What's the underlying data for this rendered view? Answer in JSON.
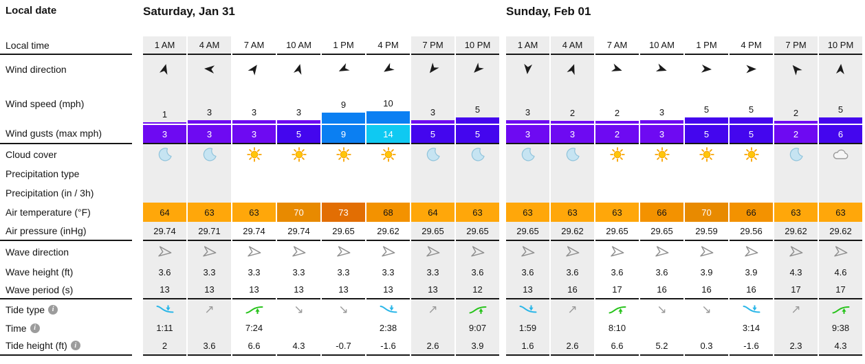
{
  "labels": {
    "local_date": "Local date",
    "rows": [
      {
        "text": "Local time"
      },
      {
        "text": "Wind direction"
      },
      {
        "text": "Wind speed (mph)"
      },
      {
        "text": "Wind gusts (max mph)"
      },
      {
        "text": "Cloud cover"
      },
      {
        "text": "Precipitation type"
      },
      {
        "text": "Precipitation (in / 3h)"
      },
      {
        "text": "Air temperature (°F)"
      },
      {
        "text": "Air pressure (inHg)"
      },
      {
        "text": "Wave direction"
      },
      {
        "text": "Wave height (ft)"
      },
      {
        "text": "Wave period (s)"
      },
      {
        "text": "Tide type",
        "info": true
      },
      {
        "text": "Time",
        "info": true
      },
      {
        "text": "Tide height (ft)",
        "info": true
      }
    ]
  },
  "scales": {
    "wind": [
      {
        "max": 3,
        "color": "#6E0AF2"
      },
      {
        "max": 6,
        "color": "#4406EE"
      },
      {
        "max": 10,
        "color": "#0B7FF2"
      },
      {
        "max": 99,
        "color": "#0FC9F2"
      }
    ],
    "temp": [
      {
        "max": 64,
        "bg": "#FFA70A",
        "fg": "#141414"
      },
      {
        "max": 68,
        "bg": "#F39200",
        "fg": "#141414"
      },
      {
        "max": 71,
        "bg": "#E88A00",
        "fg": "#FFFFFF"
      },
      {
        "max": 150,
        "bg": "#E26E03",
        "fg": "#FFFFFF"
      }
    ]
  },
  "colors": {
    "night_bg": "#EDEDED",
    "day_bg": "#FFFFFF",
    "grid_line": "#151515",
    "wind_arrow": "#1B1B1B",
    "wave_arrow": "#8F8F8F",
    "sun_core": "#FFC60B",
    "sun_rays": "#F7A300",
    "moon_fill": "#C6E4F2",
    "moon_stroke": "#8FC3DB",
    "cloud_fill": "#F6F6F6",
    "cloud_stroke": "#9B9B9B",
    "tide_low": "#29B6E8",
    "tide_high": "#27C31B",
    "tide_arrow": "#9A9A9A"
  },
  "glyphs": {
    "rising": "↗",
    "falling": "↘",
    "info": "i"
  },
  "days": [
    {
      "title": "Saturday, Jan 31",
      "columns": [
        {
          "time": "1 AM",
          "night": true,
          "wind_dir_deg": 15,
          "wind_speed": 1,
          "wind_gust": 3,
          "cloud": "moon",
          "temp": 64,
          "pressure": "29.74",
          "wave_height": "3.6",
          "wave_period": "13",
          "tide": {
            "type": "low",
            "time": "1:11",
            "height": "2"
          }
        },
        {
          "time": "4 AM",
          "night": true,
          "wind_dir_deg": 275,
          "wind_speed": 3,
          "wind_gust": 3,
          "cloud": "moon",
          "temp": 63,
          "pressure": "29.71",
          "wave_height": "3.3",
          "wave_period": "13",
          "tide": {
            "type": "rising",
            "time": "",
            "height": "3.6"
          }
        },
        {
          "time": "7 AM",
          "night": false,
          "wind_dir_deg": 35,
          "wind_speed": 3,
          "wind_gust": 3,
          "cloud": "sun",
          "temp": 63,
          "pressure": "29.74",
          "wave_height": "3.3",
          "wave_period": "13",
          "tide": {
            "type": "high",
            "time": "7:24",
            "height": "6.6"
          }
        },
        {
          "time": "10 AM",
          "night": false,
          "wind_dir_deg": 15,
          "wind_speed": 3,
          "wind_gust": 5,
          "cloud": "sun",
          "temp": 70,
          "pressure": "29.74",
          "wave_height": "3.3",
          "wave_period": "13",
          "tide": {
            "type": "falling",
            "time": "",
            "height": "4.3"
          }
        },
        {
          "time": "1 PM",
          "night": false,
          "wind_dir_deg": 243,
          "wind_speed": 9,
          "wind_gust": 9,
          "cloud": "sun",
          "temp": 73,
          "pressure": "29.65",
          "wave_height": "3.3",
          "wave_period": "13",
          "tide": {
            "type": "falling",
            "time": "",
            "height": "-0.7"
          }
        },
        {
          "time": "4 PM",
          "night": false,
          "wind_dir_deg": 237,
          "wind_speed": 10,
          "wind_gust": 14,
          "cloud": "sun",
          "temp": 68,
          "pressure": "29.62",
          "wave_height": "3.3",
          "wave_period": "13",
          "tide": {
            "type": "low",
            "time": "2:38",
            "height": "-1.6"
          }
        },
        {
          "time": "7 PM",
          "night": true,
          "wind_dir_deg": 218,
          "wind_speed": 3,
          "wind_gust": 5,
          "cloud": "moon",
          "temp": 64,
          "pressure": "29.65",
          "wave_height": "3.3",
          "wave_period": "13",
          "tide": {
            "type": "rising",
            "time": "",
            "height": "2.6"
          }
        },
        {
          "time": "10 PM",
          "night": true,
          "wind_dir_deg": 225,
          "wind_speed": 5,
          "wind_gust": 5,
          "cloud": "moon",
          "temp": 63,
          "pressure": "29.65",
          "wave_height": "3.6",
          "wave_period": "12",
          "tide": {
            "type": "high",
            "time": "9:07",
            "height": "3.9"
          }
        }
      ]
    },
    {
      "title": "Sunday, Feb 01",
      "columns": [
        {
          "time": "1 AM",
          "night": true,
          "wind_dir_deg": 185,
          "wind_speed": 3,
          "wind_gust": 3,
          "cloud": "moon",
          "temp": 63,
          "pressure": "29.65",
          "wave_height": "3.6",
          "wave_period": "13",
          "tide": {
            "type": "low",
            "time": "1:59",
            "height": "1.6"
          }
        },
        {
          "time": "4 AM",
          "night": true,
          "wind_dir_deg": 20,
          "wind_speed": 2,
          "wind_gust": 3,
          "cloud": "moon",
          "temp": 63,
          "pressure": "29.62",
          "wave_height": "3.6",
          "wave_period": "16",
          "tide": {
            "type": "rising",
            "time": "",
            "height": "2.6"
          }
        },
        {
          "time": "7 AM",
          "night": false,
          "wind_dir_deg": 108,
          "wind_speed": 2,
          "wind_gust": 2,
          "cloud": "sun",
          "temp": 63,
          "pressure": "29.65",
          "wave_height": "3.6",
          "wave_period": "17",
          "tide": {
            "type": "high",
            "time": "8:10",
            "height": "6.6"
          }
        },
        {
          "time": "10 AM",
          "night": false,
          "wind_dir_deg": 108,
          "wind_speed": 3,
          "wind_gust": 3,
          "cloud": "sun",
          "temp": 66,
          "pressure": "29.65",
          "wave_height": "3.6",
          "wave_period": "16",
          "tide": {
            "type": "falling",
            "time": "",
            "height": "5.2"
          }
        },
        {
          "time": "1 PM",
          "night": false,
          "wind_dir_deg": 95,
          "wind_speed": 5,
          "wind_gust": 5,
          "cloud": "sun",
          "temp": 70,
          "pressure": "29.59",
          "wave_height": "3.9",
          "wave_period": "16",
          "tide": {
            "type": "falling",
            "time": "",
            "height": "0.3"
          }
        },
        {
          "time": "4 PM",
          "night": false,
          "wind_dir_deg": 90,
          "wind_speed": 5,
          "wind_gust": 5,
          "cloud": "sun",
          "temp": 66,
          "pressure": "29.56",
          "wave_height": "3.9",
          "wave_period": "16",
          "tide": {
            "type": "low",
            "time": "3:14",
            "height": "-1.6"
          }
        },
        {
          "time": "7 PM",
          "night": true,
          "wind_dir_deg": 320,
          "wind_speed": 2,
          "wind_gust": 2,
          "cloud": "moon",
          "temp": 63,
          "pressure": "29.62",
          "wave_height": "4.3",
          "wave_period": "17",
          "tide": {
            "type": "rising",
            "time": "",
            "height": "2.3"
          }
        },
        {
          "time": "10 PM",
          "night": true,
          "wind_dir_deg": 5,
          "wind_speed": 5,
          "wind_gust": 6,
          "cloud": "cloud",
          "temp": 63,
          "pressure": "29.62",
          "wave_height": "4.6",
          "wave_period": "17",
          "tide": {
            "type": "high",
            "time": "9:38",
            "height": "4.3"
          }
        }
      ]
    }
  ]
}
